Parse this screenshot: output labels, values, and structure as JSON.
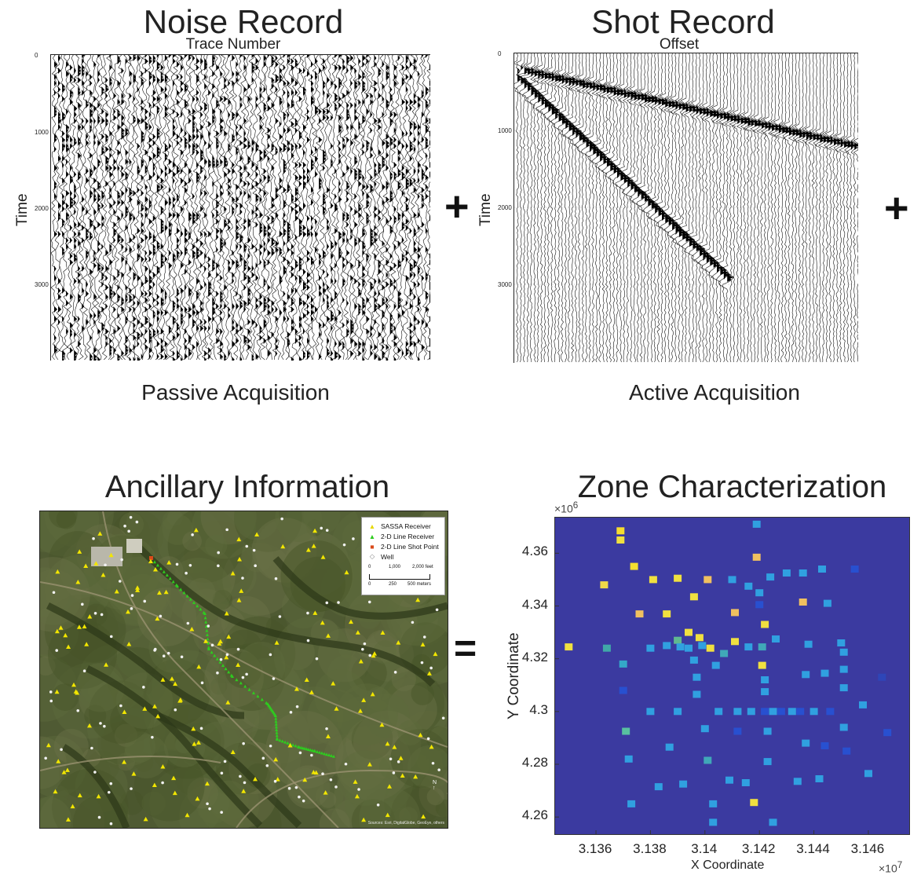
{
  "noise": {
    "title": "Noise Record",
    "xlabel": "Trace Number",
    "ylabel": "Time",
    "yticks": [
      "0",
      "1000",
      "2000",
      "3000"
    ],
    "caption": "Passive Acquisition"
  },
  "shot": {
    "title": "Shot Record",
    "xlabel": "Offset",
    "ylabel": "Time",
    "yticks": [
      "0",
      "1000",
      "2000",
      "3000"
    ],
    "caption": "Active Acquisition"
  },
  "operators": {
    "plus1": "+",
    "plus2": "+",
    "equals": "="
  },
  "ancillary": {
    "title": "Ancillary Information",
    "legend": {
      "items": [
        {
          "symbol": "▲",
          "color": "#f2e600",
          "label": "SASSA Receiver"
        },
        {
          "symbol": "▲",
          "color": "#2ecc1f",
          "label": "2-D Line Receiver"
        },
        {
          "symbol": "■",
          "color": "#d94a1a",
          "label": "2-D Line Shot Point"
        },
        {
          "symbol": "◇",
          "color": "#888888",
          "label": "Well"
        }
      ],
      "scale_top": [
        "0",
        "1,000",
        "2,000 feet"
      ],
      "scale_bottom": [
        "0",
        "250",
        "500 meters"
      ]
    },
    "attribution": "Sources: Esri, DigitalGlobe, GeoEye, others",
    "north": "N"
  },
  "zone": {
    "title": "Zone Characterization",
    "y_exponent": "×10",
    "y_exponent_power": "6",
    "x_exponent": "×10",
    "x_exponent_power": "7",
    "xlabel": "X Coordinate",
    "ylabel": "Y Coordinate"
  },
  "chart_data": {
    "type": "heatmap",
    "title": "Zone Characterization",
    "xlabel": "X Coordinate",
    "ylabel": "Y Coordinate",
    "x_multiplier": "1e7",
    "y_multiplier": "1e6",
    "xlim": [
      3.1345,
      3.1475
    ],
    "ylim": [
      4.2535,
      4.3735
    ],
    "xticks": [
      3.136,
      3.138,
      3.14,
      3.142,
      3.144,
      3.146
    ],
    "xtick_labels": [
      "3.136",
      "3.138",
      "3.14",
      "3.142",
      "3.144",
      "3.146"
    ],
    "yticks": [
      4.26,
      4.28,
      4.3,
      4.32,
      4.34,
      4.36
    ],
    "ytick_labels": [
      "4.26",
      "4.28",
      "4.3",
      "4.32",
      "4.34",
      "4.36"
    ],
    "background_color": "#3b3aa0",
    "points": [
      {
        "x": 3.135,
        "y": 4.3245,
        "color": "#f0e040"
      },
      {
        "x": 3.1363,
        "y": 4.348,
        "color": "#f0d848"
      },
      {
        "x": 3.1364,
        "y": 4.324,
        "color": "#40a8a8"
      },
      {
        "x": 3.1369,
        "y": 4.3685,
        "color": "#f5dc30"
      },
      {
        "x": 3.1369,
        "y": 4.365,
        "color": "#f0e040"
      },
      {
        "x": 3.137,
        "y": 4.318,
        "color": "#34a8c8"
      },
      {
        "x": 3.137,
        "y": 4.308,
        "color": "#2850d0"
      },
      {
        "x": 3.1371,
        "y": 4.2925,
        "color": "#58c0a0"
      },
      {
        "x": 3.1372,
        "y": 4.282,
        "color": "#30a0e0"
      },
      {
        "x": 3.1373,
        "y": 4.265,
        "color": "#30a0e0"
      },
      {
        "x": 3.1374,
        "y": 4.355,
        "color": "#f5e030"
      },
      {
        "x": 3.1376,
        "y": 4.337,
        "color": "#f0c060"
      },
      {
        "x": 3.138,
        "y": 4.3,
        "color": "#30a0e0"
      },
      {
        "x": 3.138,
        "y": 4.324,
        "color": "#30a0e0"
      },
      {
        "x": 3.1381,
        "y": 4.35,
        "color": "#f0e040"
      },
      {
        "x": 3.1383,
        "y": 4.2715,
        "color": "#30a0e0"
      },
      {
        "x": 3.1386,
        "y": 4.337,
        "color": "#f0e040"
      },
      {
        "x": 3.1386,
        "y": 4.325,
        "color": "#30a0e0"
      },
      {
        "x": 3.1387,
        "y": 4.2865,
        "color": "#30a0e0"
      },
      {
        "x": 3.139,
        "y": 4.3505,
        "color": "#f0e040"
      },
      {
        "x": 3.139,
        "y": 4.327,
        "color": "#60b890"
      },
      {
        "x": 3.139,
        "y": 4.3,
        "color": "#30a0e0"
      },
      {
        "x": 3.1391,
        "y": 4.3245,
        "color": "#30a0e0"
      },
      {
        "x": 3.1392,
        "y": 4.2725,
        "color": "#30a0e0"
      },
      {
        "x": 3.1394,
        "y": 4.33,
        "color": "#f0e040"
      },
      {
        "x": 3.1394,
        "y": 4.324,
        "color": "#30a0e0"
      },
      {
        "x": 3.1396,
        "y": 4.3435,
        "color": "#f0e040"
      },
      {
        "x": 3.1396,
        "y": 4.3195,
        "color": "#30a0e0"
      },
      {
        "x": 3.1397,
        "y": 4.313,
        "color": "#30a0e0"
      },
      {
        "x": 3.1397,
        "y": 4.3065,
        "color": "#30a0e0"
      },
      {
        "x": 3.1398,
        "y": 4.328,
        "color": "#f0e040"
      },
      {
        "x": 3.1399,
        "y": 4.325,
        "color": "#30a0e0"
      },
      {
        "x": 3.14,
        "y": 4.2935,
        "color": "#30a0e0"
      },
      {
        "x": 3.1401,
        "y": 4.2815,
        "color": "#40a8b8"
      },
      {
        "x": 3.1401,
        "y": 4.35,
        "color": "#f0c060"
      },
      {
        "x": 3.1402,
        "y": 4.324,
        "color": "#f0e040"
      },
      {
        "x": 3.1403,
        "y": 4.258,
        "color": "#30a0e0"
      },
      {
        "x": 3.1403,
        "y": 4.265,
        "color": "#30a0e0"
      },
      {
        "x": 3.1404,
        "y": 4.3175,
        "color": "#30a0e0"
      },
      {
        "x": 3.1405,
        "y": 4.3,
        "color": "#30a0e0"
      },
      {
        "x": 3.1407,
        "y": 4.322,
        "color": "#40a8b8"
      },
      {
        "x": 3.1409,
        "y": 4.274,
        "color": "#30a0e0"
      },
      {
        "x": 3.141,
        "y": 4.35,
        "color": "#30a0e0"
      },
      {
        "x": 3.1411,
        "y": 4.3265,
        "color": "#f0e040"
      },
      {
        "x": 3.1411,
        "y": 4.3375,
        "color": "#f0c060"
      },
      {
        "x": 3.1412,
        "y": 4.2925,
        "color": "#2850d0"
      },
      {
        "x": 3.1412,
        "y": 4.3,
        "color": "#30a0e0"
      },
      {
        "x": 3.1415,
        "y": 4.273,
        "color": "#30a0e0"
      },
      {
        "x": 3.1416,
        "y": 4.3475,
        "color": "#30a0e0"
      },
      {
        "x": 3.1416,
        "y": 4.3245,
        "color": "#30a0e0"
      },
      {
        "x": 3.1417,
        "y": 4.3,
        "color": "#30a0e0"
      },
      {
        "x": 3.1418,
        "y": 4.2655,
        "color": "#f0e040"
      },
      {
        "x": 3.1419,
        "y": 4.371,
        "color": "#30a0e0"
      },
      {
        "x": 3.1419,
        "y": 4.3585,
        "color": "#f0c060"
      },
      {
        "x": 3.142,
        "y": 4.345,
        "color": "#30a0e0"
      },
      {
        "x": 3.142,
        "y": 4.3405,
        "color": "#2850d0"
      },
      {
        "x": 3.1421,
        "y": 4.3245,
        "color": "#40a8b8"
      },
      {
        "x": 3.1421,
        "y": 4.3175,
        "color": "#f0e040"
      },
      {
        "x": 3.1422,
        "y": 4.3075,
        "color": "#30a0e0"
      },
      {
        "x": 3.1422,
        "y": 4.3,
        "color": "#2850d0"
      },
      {
        "x": 3.1422,
        "y": 4.333,
        "color": "#f0e040"
      },
      {
        "x": 3.1422,
        "y": 4.312,
        "color": "#30a0e0"
      },
      {
        "x": 3.1423,
        "y": 4.2925,
        "color": "#30a0e0"
      },
      {
        "x": 3.1423,
        "y": 4.281,
        "color": "#30a0e0"
      },
      {
        "x": 3.1424,
        "y": 4.351,
        "color": "#30a0e0"
      },
      {
        "x": 3.1425,
        "y": 4.258,
        "color": "#30a0e0"
      },
      {
        "x": 3.1425,
        "y": 4.3,
        "color": "#30a0e0"
      },
      {
        "x": 3.1426,
        "y": 4.3275,
        "color": "#30a0e0"
      },
      {
        "x": 3.1428,
        "y": 4.3,
        "color": "#2850d0"
      },
      {
        "x": 3.143,
        "y": 4.3525,
        "color": "#30a0e0"
      },
      {
        "x": 3.1432,
        "y": 4.3,
        "color": "#30a0e0"
      },
      {
        "x": 3.1434,
        "y": 4.2735,
        "color": "#30a0e0"
      },
      {
        "x": 3.1435,
        "y": 4.3,
        "color": "#2850d0"
      },
      {
        "x": 3.1436,
        "y": 4.3415,
        "color": "#f0c060"
      },
      {
        "x": 3.1436,
        "y": 4.3525,
        "color": "#30a0e0"
      },
      {
        "x": 3.1437,
        "y": 4.288,
        "color": "#30a0e0"
      },
      {
        "x": 3.1437,
        "y": 4.314,
        "color": "#30a0e0"
      },
      {
        "x": 3.1438,
        "y": 4.3255,
        "color": "#30a0e0"
      },
      {
        "x": 3.144,
        "y": 4.3,
        "color": "#30a0e0"
      },
      {
        "x": 3.1442,
        "y": 4.2745,
        "color": "#30a0e0"
      },
      {
        "x": 3.1443,
        "y": 4.354,
        "color": "#30a0e0"
      },
      {
        "x": 3.1444,
        "y": 4.3145,
        "color": "#30a0e0"
      },
      {
        "x": 3.1444,
        "y": 4.287,
        "color": "#2850d0"
      },
      {
        "x": 3.1445,
        "y": 4.341,
        "color": "#30a0e0"
      },
      {
        "x": 3.1446,
        "y": 4.3,
        "color": "#2850d0"
      },
      {
        "x": 3.145,
        "y": 4.326,
        "color": "#30a0e0"
      },
      {
        "x": 3.1451,
        "y": 4.3225,
        "color": "#30a0e0"
      },
      {
        "x": 3.1451,
        "y": 4.316,
        "color": "#30a0e0"
      },
      {
        "x": 3.1451,
        "y": 4.309,
        "color": "#30a0e0"
      },
      {
        "x": 3.1451,
        "y": 4.294,
        "color": "#30a0e0"
      },
      {
        "x": 3.1452,
        "y": 4.285,
        "color": "#2850d0"
      },
      {
        "x": 3.1455,
        "y": 4.354,
        "color": "#2850d0"
      },
      {
        "x": 3.1458,
        "y": 4.3025,
        "color": "#30a0e0"
      },
      {
        "x": 3.146,
        "y": 4.2765,
        "color": "#30a0e0"
      },
      {
        "x": 3.1465,
        "y": 4.313,
        "color": "#2e46b8"
      },
      {
        "x": 3.1467,
        "y": 4.292,
        "color": "#2850d0"
      }
    ]
  }
}
